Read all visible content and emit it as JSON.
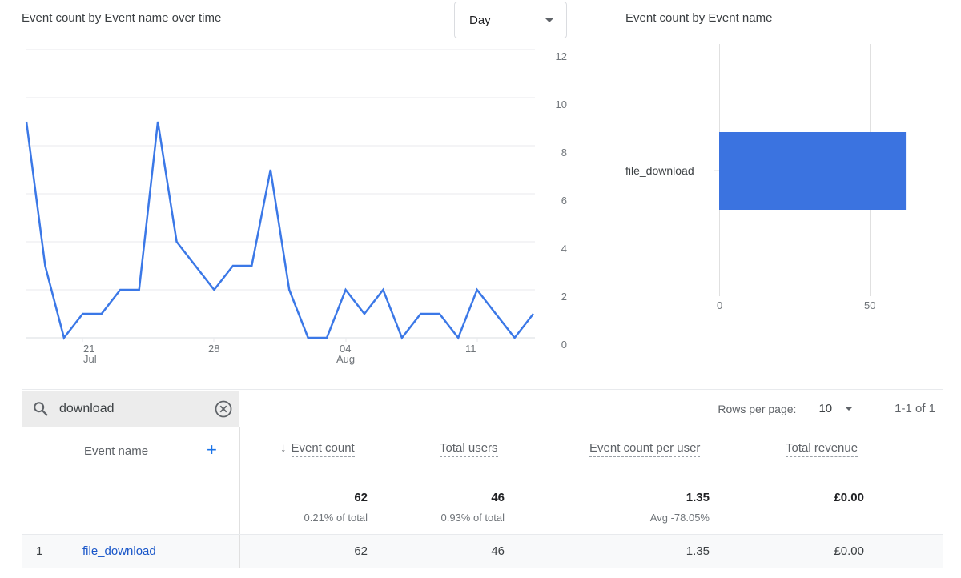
{
  "line_card": {
    "title": "Event count by Event name over time",
    "granularity": "Day",
    "y_ticks": [
      "12",
      "10",
      "8",
      "6",
      "4",
      "2",
      "0"
    ],
    "x_ticks": [
      {
        "day": "21",
        "month": "Jul"
      },
      {
        "day": "28",
        "month": ""
      },
      {
        "day": "04",
        "month": "Aug"
      },
      {
        "day": "11",
        "month": ""
      }
    ]
  },
  "bar_card": {
    "title": "Event count by Event name",
    "category": "file_download",
    "x_ticks": [
      "0",
      "50"
    ]
  },
  "chart_data": [
    {
      "type": "line",
      "title": "Event count by Event name over time",
      "xlabel": "",
      "ylabel": "",
      "x": [
        "Jul 18",
        "Jul 19",
        "Jul 20",
        "Jul 21",
        "Jul 22",
        "Jul 23",
        "Jul 24",
        "Jul 25",
        "Jul 26",
        "Jul 27",
        "Jul 28",
        "Jul 29",
        "Jul 30",
        "Jul 31",
        "Aug 01",
        "Aug 02",
        "Aug 03",
        "Aug 04",
        "Aug 05",
        "Aug 06",
        "Aug 07",
        "Aug 08",
        "Aug 09",
        "Aug 10",
        "Aug 11",
        "Aug 12",
        "Aug 13",
        "Aug 14"
      ],
      "series": [
        {
          "name": "file_download",
          "values": [
            9,
            3,
            0,
            1,
            1,
            2,
            2,
            9,
            4,
            3,
            2,
            3,
            3,
            7,
            2,
            0,
            0,
            2,
            1,
            2,
            0,
            1,
            1,
            0,
            2,
            1,
            0,
            1
          ],
          "color": "#3b78e7"
        }
      ],
      "ylim": [
        0,
        12
      ],
      "y_ticks": [
        0,
        2,
        4,
        6,
        8,
        10,
        12
      ],
      "x_tick_labels": [
        "21 Jul",
        "28",
        "04 Aug",
        "11"
      ],
      "grid": true,
      "y_axis_position": "right",
      "legend": "none"
    },
    {
      "type": "bar",
      "orientation": "horizontal",
      "title": "Event count by Event name",
      "categories": [
        "file_download"
      ],
      "values": [
        62
      ],
      "color": "#3b73e0",
      "x_ticks": [
        0,
        50
      ],
      "xlim": [
        0,
        62
      ],
      "grid": true
    }
  ],
  "table": {
    "search": {
      "value": "download",
      "placeholder": "Search..."
    },
    "rows_per_page_label": "Rows per page:",
    "rows_per_page": "10",
    "pagination": "1-1 of 1",
    "columns": {
      "event_name": "Event name",
      "event_count": "Event count",
      "total_users": "Total users",
      "event_count_per_user": "Event count per user",
      "total_revenue": "Total revenue"
    },
    "sort_indicator": "↓",
    "add_dimension": "+",
    "totals": {
      "event_count": "62",
      "event_count_sub": "0.21% of total",
      "total_users": "46",
      "total_users_sub": "0.93% of total",
      "event_count_per_user": "1.35",
      "event_count_per_user_sub": "Avg -78.05%",
      "total_revenue": "£0.00"
    },
    "rows": [
      {
        "index": "1",
        "event_name": "file_download",
        "event_count": "62",
        "total_users": "46",
        "event_count_per_user": "1.35",
        "total_revenue": "£0.00"
      }
    ]
  }
}
